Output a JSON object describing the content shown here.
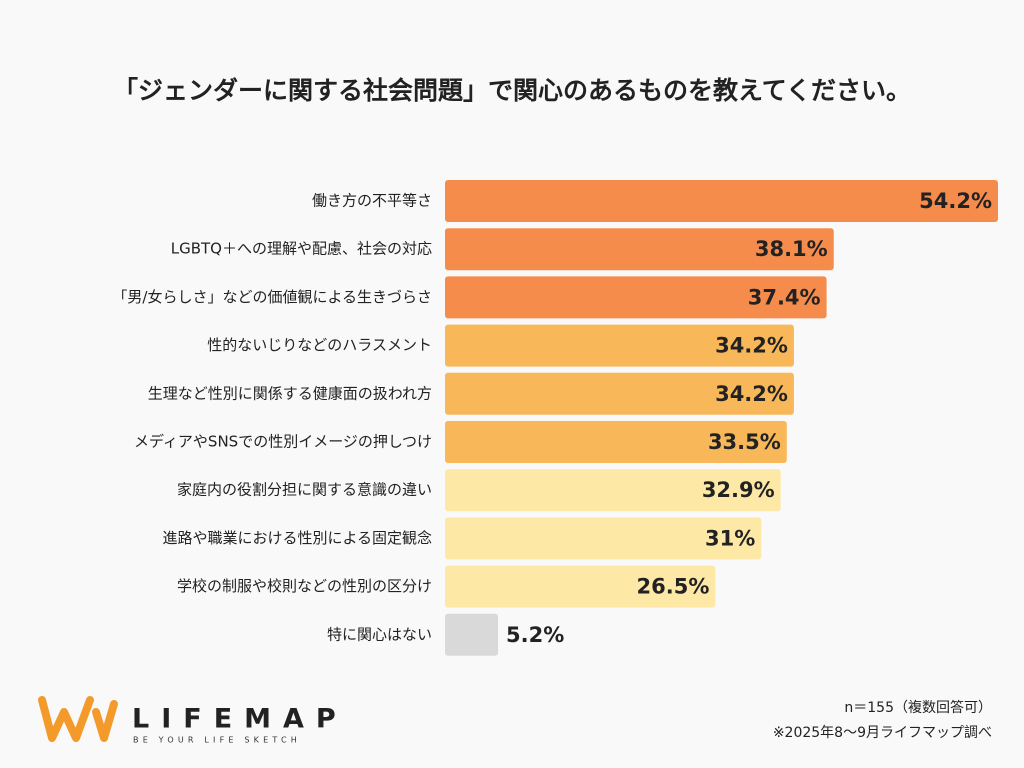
{
  "chart_data": {
    "type": "hbar",
    "title": "「ジェンダーに関する社会問題」で関心のあるものを教えてください。",
    "categories": [
      "働き方の不平等さ",
      "LGBTQ＋への理解や配慮、社会の対応",
      "「男/女らしさ」などの価値観による生きづらさ",
      "性的ないじりなどのハラスメント",
      "生理など性別に関係する健康面の扱われ方",
      "メディアやSNSでの性別イメージの押しつけ",
      "家庭内の役割分担に関する意識の違い",
      "進路や職業における性別による固定観念",
      "学校の制服や校則などの性別の区分け",
      "特に関心はない"
    ],
    "values": [
      54.2,
      38.1,
      37.4,
      34.2,
      34.2,
      33.5,
      32.9,
      31,
      26.5,
      5.2
    ],
    "value_labels": [
      "54.2%",
      "38.1%",
      "37.4%",
      "34.2%",
      "34.2%",
      "33.5%",
      "32.9%",
      "31%",
      "26.5%",
      "5.2%"
    ],
    "colors": [
      "#f68c4c",
      "#f68c4c",
      "#f68c4c",
      "#f8b85a",
      "#f8b85a",
      "#f8b85a",
      "#fde8a6",
      "#fde8a6",
      "#fde8a6",
      "#d9d9d9"
    ],
    "annotations": [
      "n＝155（複数回答可）",
      "※2025年8〜9月ライフマップ調べ"
    ],
    "logo": {
      "name": "LIFEMAP",
      "tagline": "BE YOUR LIFE SKETCH"
    }
  }
}
